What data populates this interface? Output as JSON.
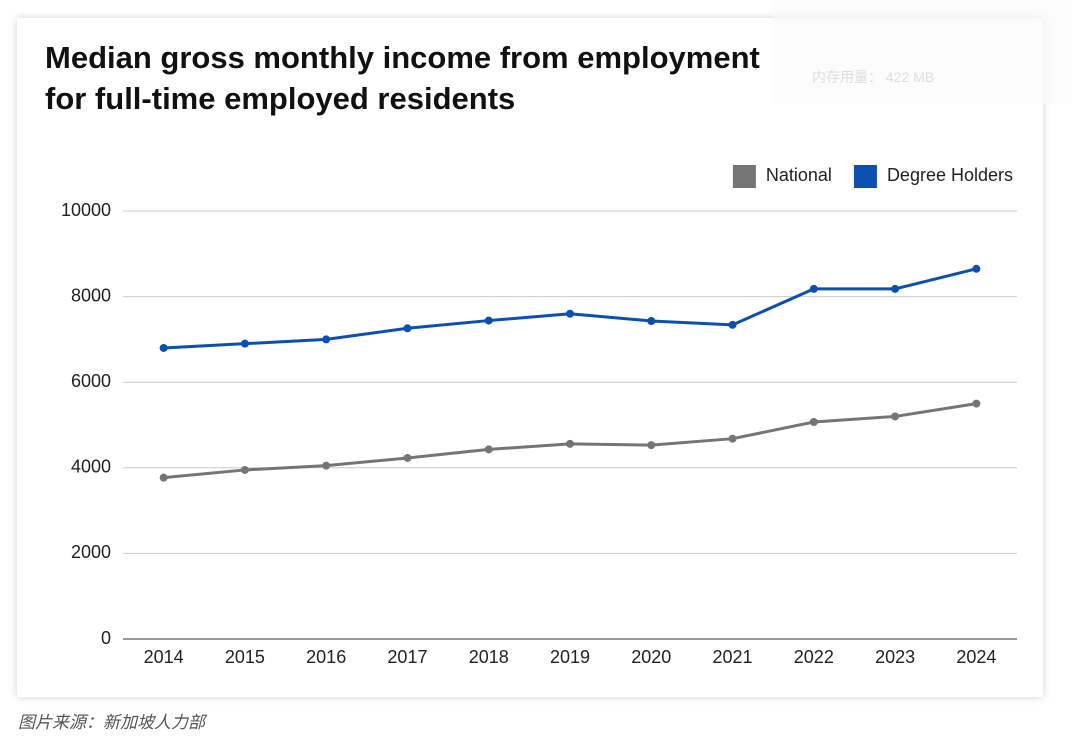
{
  "chart_data": {
    "type": "line",
    "title": [
      "Median gross monthly income from employment",
      "for full-time employed residents"
    ],
    "categories": [
      "2014",
      "2015",
      "2016",
      "2017",
      "2018",
      "2019",
      "2020",
      "2021",
      "2022",
      "2023",
      "2024"
    ],
    "series": [
      {
        "name": "National",
        "color": "#757575",
        "values": [
          3770,
          3950,
          4050,
          4230,
          4430,
          4560,
          4530,
          4680,
          5070,
          5200,
          5500
        ]
      },
      {
        "name": "Degree Holders",
        "color": "#0b4fb0",
        "values": [
          6800,
          6900,
          7000,
          7260,
          7440,
          7600,
          7430,
          7340,
          8180,
          8180,
          8650
        ]
      }
    ],
    "ylim": [
      0,
      10000
    ],
    "yticks": [
      0,
      2000,
      4000,
      6000,
      8000,
      10000
    ],
    "grid": true,
    "legend": "top-right"
  },
  "caption": "图片来源：新加坡人力部",
  "overlay": "内存用量： 422 MB"
}
